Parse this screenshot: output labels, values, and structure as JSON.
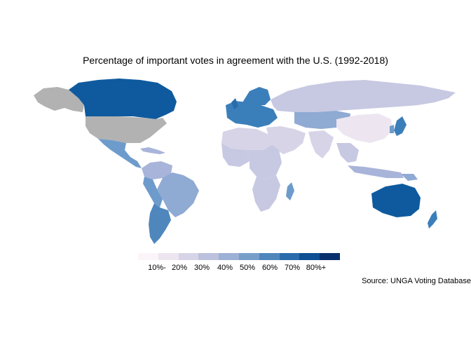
{
  "title": "Percentage of important votes in agreement with the U.S. (1992-2018)",
  "source": "Source: UNGA Voting Database",
  "legend": {
    "labels": [
      "10%-",
      "20%",
      "30%",
      "40%",
      "50%",
      "60%",
      "70%",
      "80%+"
    ],
    "colors": [
      "#fbf5fa",
      "#ede6f1",
      "#d7d4e8",
      "#bcc1dd",
      "#9db0d5",
      "#779ec9",
      "#4f87bd",
      "#2a6cab",
      "#0f4f93",
      "#08306b"
    ]
  },
  "colors": {
    "no_data": "#b2b2b2",
    "very_high": "#0f5a9e",
    "high": "#3b7fba",
    "mid_high": "#6d9bcc",
    "mid": "#a8b4d9",
    "low": "#c7c8e2",
    "very_low": "#e8e2ef"
  }
}
